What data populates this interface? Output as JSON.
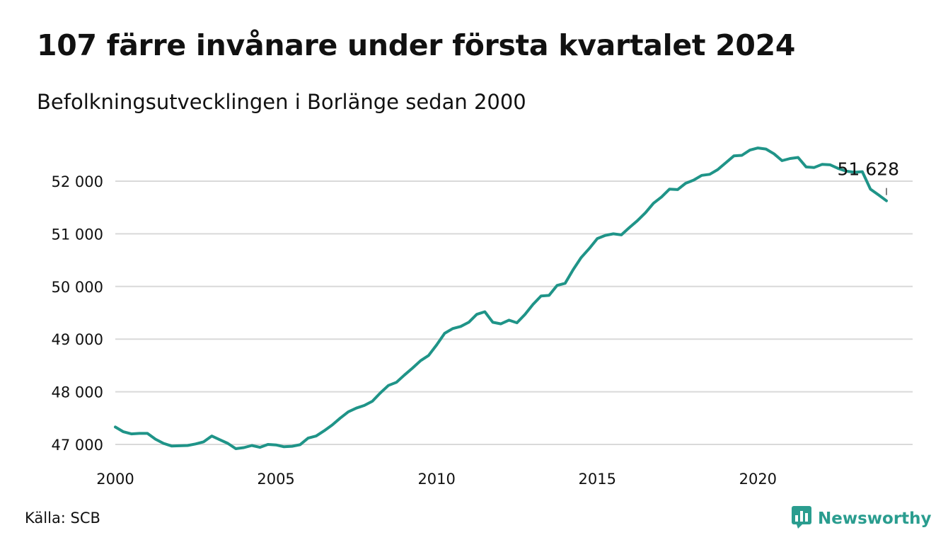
{
  "title": "107 färre invånare under första kvartalet 2024",
  "subtitle": "Befolkningsutvecklingen i Borlänge sedan 2000",
  "source": "Källa: SCB",
  "brand": {
    "name": "Newsworthy",
    "icon": "newsworthy-chat-bars-icon",
    "color": "#2a9d8f"
  },
  "colors": {
    "line": "#1f9488",
    "grid": "#d9d9d9",
    "text": "#111111"
  },
  "chart_data": {
    "type": "line",
    "title": "107 färre invånare under första kvartalet 2024",
    "subtitle": "Befolkningsutvecklingen i Borlänge sedan 2000",
    "xlabel": "",
    "ylabel": "",
    "xlim": [
      2000,
      2024.25
    ],
    "ylim": [
      46800,
      52700
    ],
    "grid": "horizontal",
    "legend": "none",
    "x_ticks": [
      {
        "value": 2000,
        "label": "2000"
      },
      {
        "value": 2005,
        "label": "2005"
      },
      {
        "value": 2010,
        "label": "2010"
      },
      {
        "value": 2015,
        "label": "2015"
      },
      {
        "value": 2020,
        "label": "2020"
      }
    ],
    "y_ticks": [
      {
        "value": 47000,
        "label": "47 000"
      },
      {
        "value": 48000,
        "label": "48 000"
      },
      {
        "value": 49000,
        "label": "49 000"
      },
      {
        "value": 50000,
        "label": "50 000"
      },
      {
        "value": 51000,
        "label": "51 000"
      },
      {
        "value": 52000,
        "label": "52 000"
      }
    ],
    "annotation": {
      "x": 2024.0,
      "y": 51628,
      "label": "51 628"
    },
    "series": [
      {
        "x": [
          2000.0,
          2000.25,
          2000.5,
          2000.75,
          2001.0,
          2001.25,
          2001.5,
          2001.75,
          2002.0,
          2002.25,
          2002.5,
          2002.75,
          2003.0,
          2003.25,
          2003.5,
          2003.75,
          2004.0,
          2004.25,
          2004.5,
          2004.75,
          2005.0,
          2005.25,
          2005.5,
          2005.75,
          2006.0,
          2006.25,
          2006.5,
          2006.75,
          2007.0,
          2007.25,
          2007.5,
          2007.75,
          2008.0,
          2008.25,
          2008.5,
          2008.75,
          2009.0,
          2009.25,
          2009.5,
          2009.75,
          2010.0,
          2010.25,
          2010.5,
          2010.75,
          2011.0,
          2011.25,
          2011.5,
          2011.75,
          2012.0,
          2012.25,
          2012.5,
          2012.75,
          2013.0,
          2013.25,
          2013.5,
          2013.75,
          2014.0,
          2014.25,
          2014.5,
          2014.75,
          2015.0,
          2015.25,
          2015.5,
          2015.75,
          2016.0,
          2016.25,
          2016.5,
          2016.75,
          2017.0,
          2017.25,
          2017.5,
          2017.75,
          2018.0,
          2018.25,
          2018.5,
          2018.75,
          2019.0,
          2019.25,
          2019.5,
          2019.75,
          2020.0,
          2020.25,
          2020.5,
          2020.75,
          2021.0,
          2021.25,
          2021.5,
          2021.75,
          2022.0,
          2022.25,
          2022.5,
          2022.75,
          2023.0,
          2023.25,
          2023.5,
          2023.75,
          2024.0
        ],
        "y": [
          47330,
          47240,
          47200,
          47210,
          47210,
          47100,
          47020,
          46970,
          46975,
          46980,
          47010,
          47050,
          47160,
          47090,
          47020,
          46920,
          46940,
          46980,
          46945,
          47000,
          46990,
          46955,
          46965,
          46995,
          47120,
          47160,
          47260,
          47370,
          47500,
          47620,
          47690,
          47740,
          47820,
          47980,
          48120,
          48180,
          48320,
          48450,
          48590,
          48690,
          48890,
          49110,
          49200,
          49240,
          49320,
          49470,
          49520,
          49320,
          49290,
          49360,
          49310,
          49470,
          49660,
          49820,
          49830,
          50020,
          50060,
          50320,
          50550,
          50720,
          50910,
          50970,
          51000,
          50980,
          51120,
          51250,
          51400,
          51580,
          51700,
          51850,
          51840,
          51960,
          52020,
          52110,
          52130,
          52220,
          52350,
          52480,
          52490,
          52590,
          52630,
          52610,
          52520,
          52390,
          52430,
          52450,
          52270,
          52260,
          52320,
          52310,
          52240,
          52190,
          52170,
          52180,
          51850,
          51740,
          51628
        ]
      }
    ]
  }
}
